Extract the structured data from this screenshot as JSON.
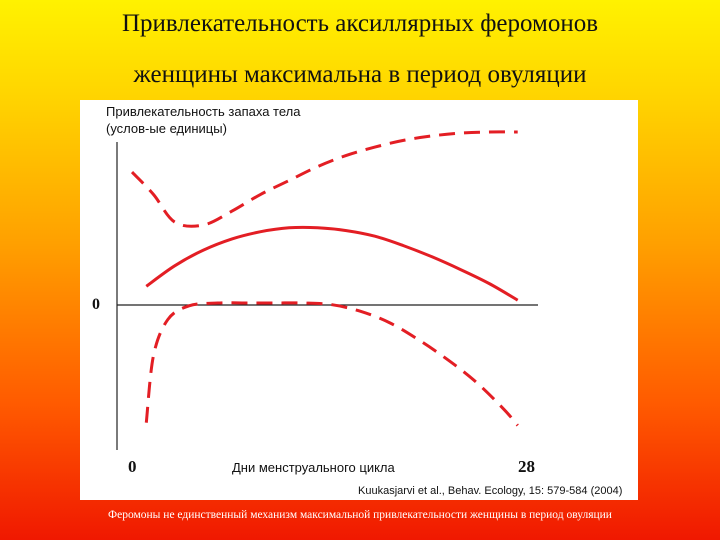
{
  "slide": {
    "title_line1": "Привлекательность аксиллярных феромонов",
    "title_line2": "женщины максимальна в период овуляции",
    "caption": "Феромоны не единственный механизм максимальной привлекательности женщины в период овуляции"
  },
  "chart_data": {
    "type": "line",
    "ylabel_line1": "Привлекательность запаха тела",
    "ylabel_line2": "(услов-ые единицы)",
    "xlabel": "Дни менструального цикла",
    "x_tick_start": "0",
    "x_tick_end": "28",
    "y_zero_label": "0",
    "xlim": [
      0,
      28
    ],
    "ylim": [
      -2.6,
      3.2
    ],
    "citation": "Kuukasjarvi et al., Behav. Ecology, 15: 579-584 (2004)",
    "line_color": "#e31e24",
    "series": [
      {
        "style": "dashed",
        "x": [
          0,
          1.5,
          3,
          5,
          7,
          9,
          11,
          13,
          15,
          17,
          19,
          21,
          23,
          25,
          27
        ],
        "y": [
          2.3,
          1.9,
          1.4,
          1.35,
          1.6,
          1.9,
          2.15,
          2.4,
          2.6,
          2.75,
          2.87,
          2.95,
          3.0,
          3.02,
          3.02
        ]
      },
      {
        "style": "solid",
        "x": [
          1,
          3,
          5,
          7,
          9,
          11,
          13,
          15,
          17,
          19,
          21,
          23,
          25,
          27
        ],
        "y": [
          0.25,
          0.62,
          0.9,
          1.1,
          1.23,
          1.3,
          1.3,
          1.25,
          1.15,
          0.98,
          0.78,
          0.55,
          0.3,
          0.0
        ]
      },
      {
        "style": "dashed",
        "x": [
          1,
          1.5,
          2.5,
          4,
          6,
          8,
          10,
          12,
          14,
          16,
          18,
          20,
          22,
          24,
          26,
          27
        ],
        "y": [
          -2.2,
          -1.0,
          -0.35,
          -0.1,
          -0.05,
          -0.05,
          -0.05,
          -0.05,
          -0.08,
          -0.2,
          -0.4,
          -0.7,
          -1.05,
          -1.45,
          -1.95,
          -2.25
        ]
      }
    ]
  }
}
